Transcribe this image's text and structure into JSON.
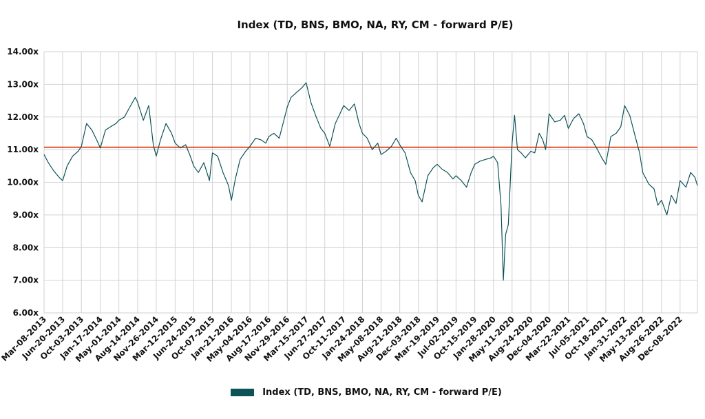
{
  "chart_data": {
    "type": "line",
    "title": "Index (TD, BNS, BMO, NA, RY, CM - forward P/E)",
    "xlabel": "",
    "ylabel": "",
    "ylim": [
      6.0,
      14.0
    ],
    "y_ticks": [
      "6.00x",
      "7.00x",
      "8.00x",
      "9.00x",
      "10.00x",
      "11.00x",
      "12.00x",
      "13.00x",
      "14.00x"
    ],
    "x_ticks": [
      "Mar-08-2013",
      "Jun-20-2013",
      "Oct-03-2013",
      "Jan-17-2014",
      "May-01-2014",
      "Aug-14-2014",
      "Nov-26-2014",
      "Mar-12-2015",
      "Jun-24-2015",
      "Oct-07-2015",
      "Jan-21-2016",
      "May-04-2016",
      "Aug-17-2016",
      "Nov-29-2016",
      "Mar-15-2017",
      "Jun-27-2017",
      "Oct-11-2017",
      "Jan-24-2018",
      "May-08-2018",
      "Aug-21-2018",
      "Dec-03-2018",
      "Mar-19-2019",
      "Jul-02-2019",
      "Oct-15-2019",
      "Jan-28-2020",
      "May-11-2020",
      "Aug-24-2020",
      "Dec-04-2020",
      "Mar-22-2021",
      "Jul-05-2021",
      "Oct-18-2021",
      "Jan-31-2022",
      "May-13-2022",
      "Aug-26-2022",
      "Dec-08-2022"
    ],
    "grid": true,
    "legend": "bottom",
    "reference_line": {
      "value": 11.07,
      "color": "#e8512a"
    },
    "series": [
      {
        "name": "Index (TD, BNS, BMO, NA, RY, CM - forward P/E)",
        "color": "#0d5257",
        "x": [
          "Mar-08-2013",
          "Apr-01-2013",
          "May-01-2013",
          "Jun-01-2013",
          "Jun-20-2013",
          "Jul-15-2013",
          "Aug-15-2013",
          "Sep-15-2013",
          "Oct-03-2013",
          "Nov-01-2013",
          "Dec-01-2013",
          "Jan-01-2014",
          "Jan-17-2014",
          "Feb-15-2014",
          "Mar-15-2014",
          "Apr-15-2014",
          "May-01-2014",
          "Jun-01-2014",
          "Jul-01-2014",
          "Aug-01-2014",
          "Aug-14-2014",
          "Sep-15-2014",
          "Oct-15-2014",
          "Nov-10-2014",
          "Nov-26-2014",
          "Dec-20-2014",
          "Jan-20-2015",
          "Feb-20-2015",
          "Mar-12-2015",
          "Apr-10-2015",
          "May-10-2015",
          "Jun-05-2015",
          "Jun-24-2015",
          "Jul-20-2015",
          "Aug-20-2015",
          "Sep-20-2015",
          "Oct-07-2015",
          "Nov-05-2015",
          "Dec-05-2015",
          "Jan-05-2016",
          "Jan-21-2016",
          "Feb-12-2016",
          "Mar-10-2016",
          "Apr-10-2016",
          "May-04-2016",
          "Jun-05-2016",
          "Jul-05-2016",
          "Aug-01-2016",
          "Aug-17-2016",
          "Sep-15-2016",
          "Oct-15-2016",
          "Nov-10-2016",
          "Nov-29-2016",
          "Dec-20-2016",
          "Jan-20-2017",
          "Feb-20-2017",
          "Mar-15-2017",
          "Apr-10-2017",
          "May-10-2017",
          "Jun-05-2017",
          "Jun-27-2017",
          "Jul-25-2017",
          "Aug-25-2017",
          "Sep-20-2017",
          "Oct-11-2017",
          "Nov-10-2017",
          "Dec-10-2017",
          "Jan-05-2018",
          "Jan-24-2018",
          "Feb-20-2018",
          "Mar-20-2018",
          "Apr-20-2018",
          "May-08-2018",
          "Jun-05-2018",
          "Jul-05-2018",
          "Aug-01-2018",
          "Aug-21-2018",
          "Sep-20-2018",
          "Oct-20-2018",
          "Nov-15-2018",
          "Dec-03-2018",
          "Dec-24-2018",
          "Jan-25-2019",
          "Feb-25-2019",
          "Mar-19-2019",
          "Apr-15-2019",
          "May-15-2019",
          "Jun-15-2019",
          "Jul-02-2019",
          "Aug-01-2019",
          "Aug-30-2019",
          "Sep-25-2019",
          "Oct-15-2019",
          "Nov-15-2019",
          "Dec-15-2019",
          "Jan-15-2020",
          "Jan-28-2020",
          "Feb-20-2020",
          "Mar-10-2020",
          "Mar-23-2020",
          "Apr-05-2020",
          "Apr-20-2020",
          "May-11-2020",
          "May-25-2020",
          "Jun-10-2020",
          "Jul-01-2020",
          "Jul-25-2020",
          "Aug-24-2020",
          "Sep-15-2020",
          "Oct-10-2020",
          "Oct-30-2020",
          "Nov-15-2020",
          "Dec-04-2020",
          "Jan-05-2021",
          "Feb-05-2021",
          "Mar-01-2021",
          "Mar-22-2021",
          "Apr-20-2021",
          "May-20-2021",
          "Jun-15-2021",
          "Jul-05-2021",
          "Aug-01-2021",
          "Sep-01-2021",
          "Sep-25-2021",
          "Oct-18-2021",
          "Nov-15-2021",
          "Dec-15-2021",
          "Jan-10-2022",
          "Jan-31-2022",
          "Mar-01-2022",
          "Apr-01-2022",
          "Apr-25-2022",
          "May-13-2022",
          "Jun-15-2022",
          "Jul-15-2022",
          "Aug-05-2022",
          "Aug-26-2022",
          "Sep-25-2022",
          "Oct-20-2022",
          "Nov-15-2022",
          "Dec-08-2022",
          "Jan-10-2023",
          "Feb-05-2023",
          "Mar-01-2023",
          "Mar-15-2023"
        ],
        "values": [
          10.85,
          10.6,
          10.35,
          10.15,
          10.05,
          10.5,
          10.8,
          10.95,
          11.1,
          11.8,
          11.6,
          11.25,
          11.05,
          11.6,
          11.7,
          11.8,
          11.9,
          12.0,
          12.3,
          12.6,
          12.45,
          11.9,
          12.35,
          11.15,
          10.8,
          11.3,
          11.8,
          11.5,
          11.2,
          11.05,
          11.15,
          10.8,
          10.5,
          10.3,
          10.6,
          10.05,
          10.9,
          10.8,
          10.3,
          9.9,
          9.45,
          10.1,
          10.7,
          10.95,
          11.1,
          11.35,
          11.3,
          11.2,
          11.4,
          11.5,
          11.35,
          11.9,
          12.3,
          12.6,
          12.75,
          12.9,
          13.05,
          12.45,
          12.0,
          11.65,
          11.5,
          11.1,
          11.8,
          12.1,
          12.35,
          12.2,
          12.4,
          11.8,
          11.5,
          11.35,
          11.0,
          11.2,
          10.85,
          10.95,
          11.1,
          11.35,
          11.15,
          10.9,
          10.3,
          10.05,
          9.6,
          9.4,
          10.2,
          10.45,
          10.55,
          10.4,
          10.3,
          10.1,
          10.2,
          10.05,
          9.85,
          10.3,
          10.55,
          10.65,
          10.7,
          10.75,
          10.8,
          10.6,
          9.3,
          7.0,
          8.4,
          8.7,
          11.2,
          12.05,
          11.0,
          10.9,
          10.75,
          10.95,
          10.9,
          11.5,
          11.3,
          11.0,
          12.1,
          11.85,
          11.9,
          12.05,
          11.65,
          11.95,
          12.1,
          11.8,
          11.4,
          11.3,
          11.0,
          10.75,
          10.55,
          11.4,
          11.5,
          11.7,
          12.35,
          12.05,
          11.4,
          10.9,
          10.3,
          9.95,
          9.8,
          9.3,
          9.45,
          9.0,
          9.6,
          9.35,
          10.05,
          9.85,
          10.3,
          10.15,
          9.9
        ]
      }
    ]
  }
}
